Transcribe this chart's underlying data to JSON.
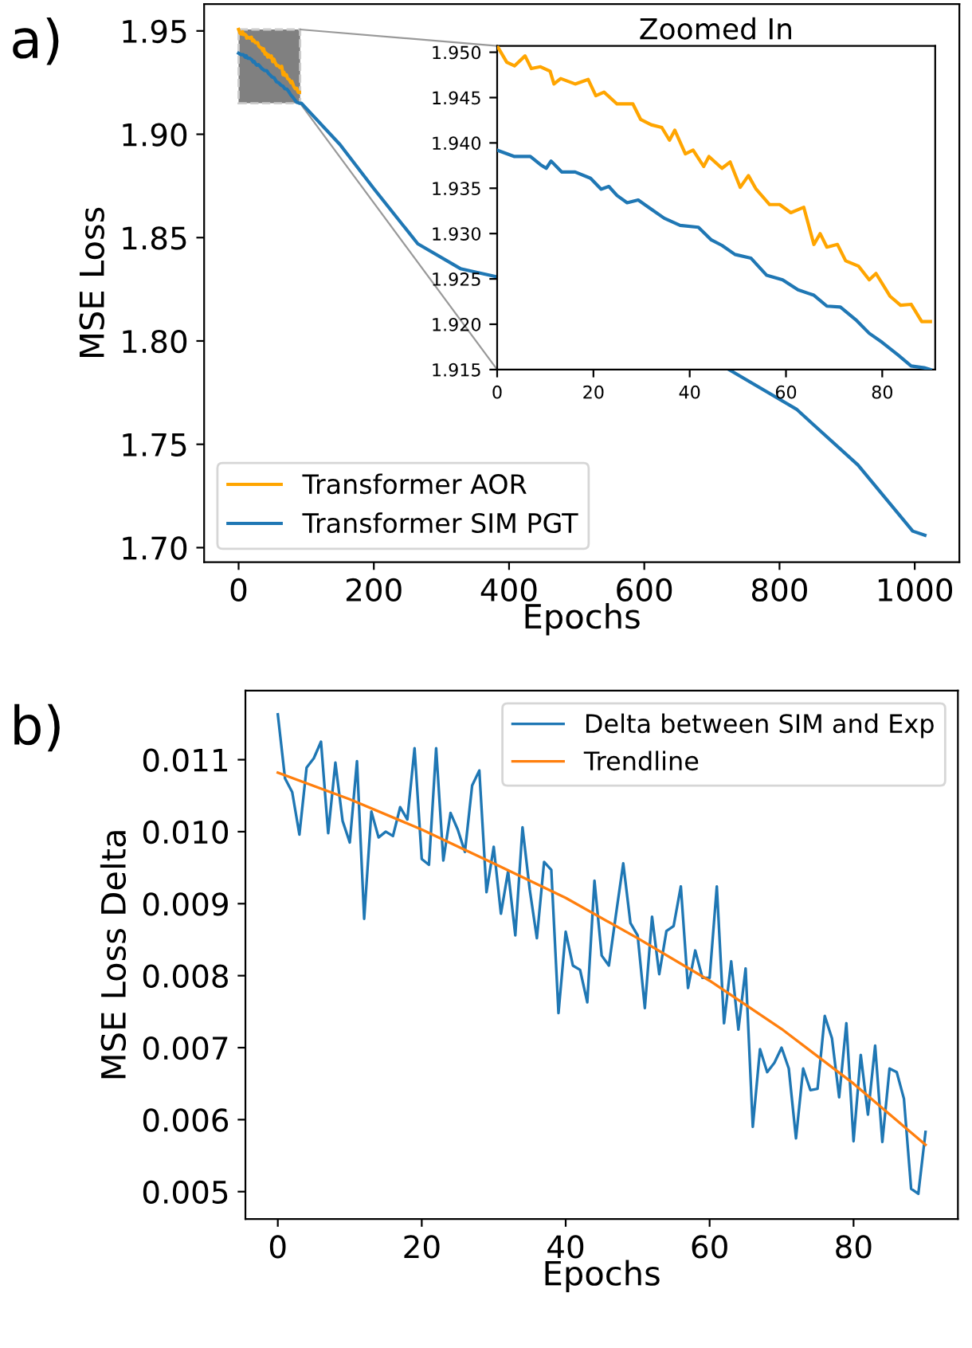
{
  "chart_data": [
    {
      "type": "line",
      "xlabel": "Epochs",
      "ylabel": "MSE Loss",
      "annotations": [
        "a)"
      ],
      "legend": "bottom left",
      "grid": false,
      "xlim": [
        -51,
        1066
      ],
      "ylim": [
        1.693,
        1.963
      ],
      "xticks": [
        0,
        200,
        400,
        600,
        800,
        1000
      ],
      "yticks": [
        {
          "value": 1.7,
          "label": "1.70"
        },
        1.75,
        {
          "value": 1.8,
          "label": "1.80"
        },
        1.85,
        {
          "value": 1.9,
          "label": "1.90"
        },
        1.95
      ],
      "series": [
        {
          "name": "Transformer AOR",
          "color": "#ffa500",
          "x": [
            0,
            2,
            3.6,
            5.8,
            7.1,
            9,
            11,
            11.8,
            13.2,
            16.2,
            18.9,
            20.5,
            22.2,
            24.9,
            28.2,
            29.8,
            32,
            34.2,
            35.8,
            36.9,
            39.1,
            40.7,
            42.9,
            44,
            46.7,
            48.4,
            50.5,
            52.2,
            53.8,
            56.6,
            58.7,
            61,
            63.7,
            65.8,
            67.1,
            68.5,
            70.7,
            72.4,
            75.1,
            77.3,
            78.7,
            81.6,
            83.8,
            86,
            88.2,
            90
          ],
          "values": [
            1.9507,
            1.9489,
            1.9485,
            1.9496,
            1.9482,
            1.9484,
            1.9479,
            1.9465,
            1.9471,
            1.9465,
            1.947,
            1.9452,
            1.9456,
            1.9443,
            1.9443,
            1.9426,
            1.942,
            1.9417,
            1.9403,
            1.9414,
            1.9388,
            1.9392,
            1.9374,
            1.9385,
            1.9372,
            1.9379,
            1.9351,
            1.9364,
            1.9349,
            1.9332,
            1.9332,
            1.9323,
            1.9329,
            1.9288,
            1.93,
            1.9285,
            1.9288,
            1.927,
            1.9264,
            1.9249,
            1.9256,
            1.9231,
            1.9221,
            1.9222,
            1.9203,
            1.9203
          ]
        },
        {
          "name": "Transformer SIM PGT",
          "color": "#1f77b4",
          "x": [
            0,
            3.6,
            6.9,
            9,
            10.2,
            11.2,
            13.4,
            16.2,
            19.4,
            21.6,
            23.2,
            24.9,
            27,
            29.3,
            32,
            34.7,
            38,
            41.8,
            44.5,
            46.7,
            49.4,
            52.7,
            56,
            59.3,
            62.5,
            65.8,
            68.5,
            71.3,
            74.5,
            77.3,
            80,
            83.3,
            86,
            88.7,
            90,
            93,
            150,
            200,
            265,
            328,
            382,
            500,
            726,
            825,
            916,
            997,
            1015
          ],
          "values": [
            1.9392,
            1.9385,
            1.9385,
            1.9376,
            1.9372,
            1.938,
            1.9368,
            1.9368,
            1.9361,
            1.9349,
            1.9352,
            1.9342,
            1.9334,
            1.9337,
            1.9327,
            1.9317,
            1.9309,
            1.9307,
            1.9293,
            1.9287,
            1.9277,
            1.9273,
            1.9254,
            1.9249,
            1.9238,
            1.9232,
            1.922,
            1.9219,
            1.9205,
            1.919,
            1.918,
            1.9166,
            1.9154,
            1.9152,
            1.915,
            1.915,
            1.895,
            1.8737,
            1.847,
            1.835,
            1.831,
            null,
            1.786,
            1.767,
            1.74,
            1.708,
            1.706
          ]
        }
      ]
    },
    {
      "type": "line",
      "title": "Zoomed In",
      "grid": false,
      "xlim": [
        0,
        91
      ],
      "ylim": [
        1.915,
        1.9507
      ],
      "xticks": [
        0,
        20,
        40,
        60,
        80
      ],
      "yticks": [
        {
          "value": 1.915,
          "label": "1.915"
        },
        {
          "value": 1.92,
          "label": "1.920"
        },
        {
          "value": 1.925,
          "label": "1.925"
        },
        {
          "value": 1.93,
          "label": "1.930"
        },
        {
          "value": 1.935,
          "label": "1.935"
        },
        {
          "value": 1.94,
          "label": "1.940"
        },
        {
          "value": 1.945,
          "label": "1.945"
        },
        {
          "value": 1.95,
          "label": "1.950"
        }
      ],
      "series": [
        {
          "color": "#ffa500",
          "x": [
            0,
            2,
            3.6,
            5.8,
            7.1,
            9,
            11,
            11.8,
            13.2,
            16.2,
            18.9,
            20.5,
            22.2,
            24.9,
            28.2,
            29.8,
            32,
            34.2,
            35.8,
            36.9,
            39.1,
            40.7,
            42.9,
            44,
            46.7,
            48.4,
            50.5,
            52.2,
            53.8,
            56.6,
            58.7,
            61,
            63.7,
            65.8,
            67.1,
            68.5,
            70.7,
            72.4,
            75.1,
            77.3,
            78.7,
            81.6,
            83.8,
            86,
            88.2,
            90
          ],
          "values": [
            1.9507,
            1.9489,
            1.9485,
            1.9496,
            1.9482,
            1.9484,
            1.9479,
            1.9465,
            1.9471,
            1.9465,
            1.947,
            1.9452,
            1.9456,
            1.9443,
            1.9443,
            1.9426,
            1.942,
            1.9417,
            1.9403,
            1.9414,
            1.9388,
            1.9392,
            1.9374,
            1.9385,
            1.9372,
            1.9379,
            1.9351,
            1.9364,
            1.9349,
            1.9332,
            1.9332,
            1.9323,
            1.9329,
            1.9288,
            1.93,
            1.9285,
            1.9288,
            1.927,
            1.9264,
            1.9249,
            1.9256,
            1.9231,
            1.9221,
            1.9222,
            1.9203,
            1.9203
          ]
        },
        {
          "color": "#1f77b4",
          "x": [
            0,
            3.6,
            6.9,
            9,
            10.2,
            11.2,
            13.4,
            16.2,
            19.4,
            21.6,
            23.2,
            24.9,
            27,
            29.3,
            32,
            34.7,
            38,
            41.8,
            44.5,
            46.7,
            49.4,
            52.7,
            56,
            59.3,
            62.5,
            65.8,
            68.5,
            71.3,
            74.5,
            77.3,
            80,
            83.3,
            86,
            88.7,
            90
          ],
          "values": [
            1.9392,
            1.9385,
            1.9385,
            1.9376,
            1.9372,
            1.938,
            1.9368,
            1.9368,
            1.9361,
            1.9349,
            1.9352,
            1.9342,
            1.9334,
            1.9337,
            1.9327,
            1.9317,
            1.9309,
            1.9307,
            1.9293,
            1.9287,
            1.9277,
            1.9273,
            1.9254,
            1.9249,
            1.9238,
            1.9232,
            1.922,
            1.9219,
            1.9205,
            1.919,
            1.918,
            1.9166,
            1.9154,
            1.9152,
            1.915
          ]
        }
      ]
    },
    {
      "type": "line",
      "xlabel": "Epochs",
      "ylabel": "MSE Loss Delta",
      "annotations": [
        "b)"
      ],
      "legend": "top right",
      "grid": false,
      "xlim": [
        -4.5,
        94.5
      ],
      "ylim": [
        0.00462,
        0.01196
      ],
      "xticks": [
        0,
        20,
        40,
        60,
        80
      ],
      "yticks": [
        0.005,
        0.006,
        0.007,
        0.008,
        0.009,
        {
          "value": 0.01,
          "label": "0.010"
        },
        0.011
      ],
      "series": [
        {
          "name": "Delta between SIM and Exp",
          "color": "#1f77b4",
          "x": [
            0,
            1,
            2,
            3,
            4,
            5,
            6,
            7,
            8,
            9,
            10,
            11,
            12,
            13,
            14,
            15,
            16,
            17,
            18,
            19,
            20,
            21,
            22,
            23,
            24,
            25,
            26,
            27,
            28,
            29,
            30,
            31,
            32,
            33,
            34,
            35,
            36,
            37,
            38,
            39,
            40,
            41,
            42,
            43,
            44,
            45,
            46,
            47,
            48,
            49,
            50,
            51,
            52,
            53,
            54,
            55,
            56,
            57,
            58,
            59,
            60,
            61,
            62,
            63,
            64,
            65,
            66,
            67,
            68,
            69,
            70,
            71,
            72,
            73,
            74,
            75,
            76,
            77,
            78,
            79,
            80,
            81,
            82,
            83,
            84,
            85,
            86,
            87,
            88,
            89,
            90
          ],
          "values": [
            0.01163,
            0.01074,
            0.01055,
            0.00996,
            0.01089,
            0.01102,
            0.01125,
            0.00998,
            0.01096,
            0.01015,
            0.00985,
            0.01098,
            0.00879,
            0.01028,
            0.00992,
            0.01,
            0.00994,
            0.01034,
            0.01017,
            0.01116,
            0.00962,
            0.00954,
            0.01116,
            0.0096,
            0.01026,
            0.01003,
            0.00972,
            0.01064,
            0.01085,
            0.00916,
            0.00979,
            0.00886,
            0.00945,
            0.00856,
            0.01006,
            0.0092,
            0.00852,
            0.00958,
            0.00947,
            0.00748,
            0.00861,
            0.00814,
            0.00808,
            0.00763,
            0.00932,
            0.00828,
            0.00814,
            0.00886,
            0.00956,
            0.00873,
            0.00856,
            0.00755,
            0.00882,
            0.00802,
            0.00862,
            0.00869,
            0.00924,
            0.00783,
            0.00835,
            0.00797,
            0.00797,
            0.00924,
            0.00734,
            0.0082,
            0.00725,
            0.0081,
            0.0059,
            0.00698,
            0.00666,
            0.00679,
            0.007,
            0.00671,
            0.00574,
            0.00671,
            0.00641,
            0.00643,
            0.00744,
            0.00713,
            0.00631,
            0.00734,
            0.0057,
            0.0069,
            0.00607,
            0.00703,
            0.00569,
            0.00671,
            0.00666,
            0.00629,
            0.00504,
            0.00497,
            0.00583
          ]
        },
        {
          "name": "Trendline",
          "color": "#ff7f0e",
          "x": [
            0,
            10,
            20,
            30,
            40,
            50,
            60,
            70,
            80,
            90
          ],
          "values": [
            0.01082,
            0.01045,
            0.01003,
            0.00956,
            0.00908,
            0.00852,
            0.00793,
            0.00726,
            0.0065,
            0.00565
          ]
        }
      ]
    }
  ]
}
